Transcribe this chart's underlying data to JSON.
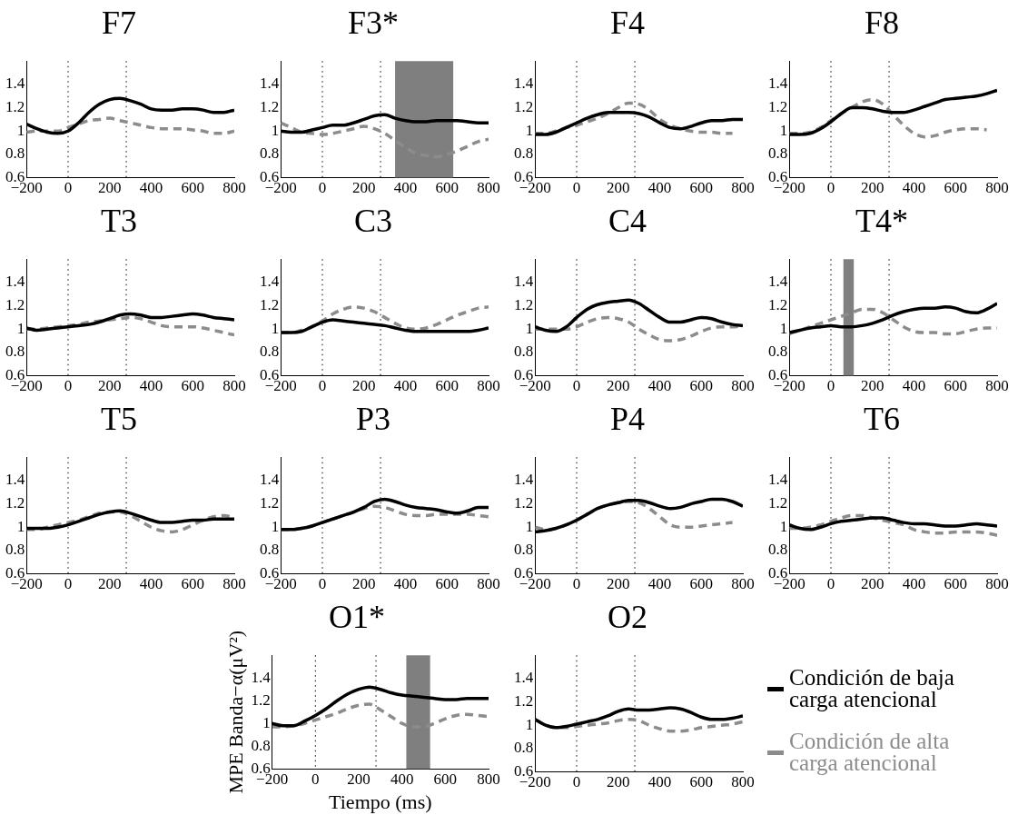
{
  "chart_data": [
    {
      "type": "line",
      "title": "F7",
      "x": [
        -200,
        -150,
        -100,
        -50,
        0,
        50,
        100,
        150,
        200,
        250,
        300,
        350,
        400,
        450,
        500,
        550,
        600,
        650,
        700,
        750,
        800
      ],
      "xlim": [
        -200,
        800
      ],
      "ylim": [
        0.6,
        1.6
      ],
      "xticks": [
        -200,
        0,
        200,
        400,
        600,
        800
      ],
      "yticks": [
        0.6,
        0.8,
        1,
        1.2,
        1.4
      ],
      "marker": "none",
      "series": [
        {
          "color": "#000000",
          "line_style": "solid",
          "values": [
            1.06,
            1.02,
            0.99,
            0.98,
            1.0,
            1.07,
            1.16,
            1.23,
            1.27,
            1.28,
            1.26,
            1.23,
            1.19,
            1.18,
            1.18,
            1.19,
            1.19,
            1.18,
            1.16,
            1.16,
            1.18
          ]
        },
        {
          "color": "#8c8c8c",
          "line_style": "dashed",
          "values": [
            0.99,
            1.0,
            1.0,
            1.0,
            1.03,
            1.06,
            1.09,
            1.1,
            1.11,
            1.09,
            1.07,
            1.05,
            1.03,
            1.02,
            1.02,
            1.02,
            1.01,
            1.0,
            0.98,
            0.98,
            1.0
          ]
        }
      ],
      "ref_lines": [
        {
          "axis": "x",
          "value": 0,
          "line_style": "dotted"
        },
        {
          "axis": "x",
          "value": 280,
          "line_style": "dotted"
        }
      ]
    },
    {
      "type": "line",
      "title": "F3*",
      "x": [
        -200,
        -150,
        -100,
        -50,
        0,
        50,
        100,
        150,
        200,
        250,
        300,
        350,
        400,
        450,
        500,
        550,
        600,
        650,
        700,
        750,
        800
      ],
      "xlim": [
        -200,
        800
      ],
      "ylim": [
        0.6,
        1.6
      ],
      "xticks": [
        -200,
        0,
        200,
        400,
        600,
        800
      ],
      "yticks": [
        0.6,
        0.8,
        1,
        1.2,
        1.4
      ],
      "marker": "none",
      "series": [
        {
          "color": "#000000",
          "line_style": "solid",
          "values": [
            1.0,
            0.99,
            0.99,
            1.01,
            1.03,
            1.05,
            1.05,
            1.07,
            1.1,
            1.13,
            1.14,
            1.11,
            1.09,
            1.08,
            1.08,
            1.09,
            1.09,
            1.09,
            1.08,
            1.07,
            1.07
          ]
        },
        {
          "color": "#8c8c8c",
          "line_style": "dashed",
          "values": [
            1.07,
            1.03,
            0.99,
            0.98,
            0.97,
            0.98,
            1.0,
            1.02,
            1.04,
            1.02,
            0.98,
            0.92,
            0.86,
            0.81,
            0.79,
            0.78,
            0.8,
            0.83,
            0.87,
            0.91,
            0.93
          ]
        }
      ],
      "ref_lines": [
        {
          "axis": "x",
          "value": 0,
          "line_style": "dotted"
        },
        {
          "axis": "x",
          "value": 280,
          "line_style": "dotted"
        }
      ],
      "bands": [
        {
          "axis": "x",
          "from": 350,
          "to": 630,
          "color": "#7f7f7f"
        }
      ]
    },
    {
      "type": "line",
      "title": "F4",
      "x": [
        -200,
        -150,
        -100,
        -50,
        0,
        50,
        100,
        150,
        200,
        250,
        300,
        350,
        400,
        450,
        500,
        550,
        600,
        650,
        700,
        750,
        800
      ],
      "xlim": [
        -200,
        800
      ],
      "ylim": [
        0.6,
        1.6
      ],
      "xticks": [
        -200,
        0,
        200,
        400,
        600,
        800
      ],
      "yticks": [
        0.6,
        0.8,
        1,
        1.2,
        1.4
      ],
      "marker": "none",
      "series": [
        {
          "color": "#000000",
          "line_style": "solid",
          "values": [
            0.97,
            0.97,
            0.99,
            1.03,
            1.07,
            1.11,
            1.14,
            1.16,
            1.16,
            1.16,
            1.15,
            1.12,
            1.07,
            1.03,
            1.02,
            1.04,
            1.07,
            1.09,
            1.09,
            1.1,
            1.1
          ]
        },
        {
          "color": "#8c8c8c",
          "line_style": "dashed",
          "values": [
            0.98,
            0.98,
            1.0,
            1.03,
            1.05,
            1.08,
            1.11,
            1.15,
            1.2,
            1.24,
            1.23,
            1.18,
            1.1,
            1.05,
            1.02,
            1.0,
            0.99,
            0.99,
            0.98,
            0.98,
            null
          ]
        }
      ],
      "ref_lines": [
        {
          "axis": "x",
          "value": 0,
          "line_style": "dotted"
        },
        {
          "axis": "x",
          "value": 280,
          "line_style": "dotted"
        }
      ]
    },
    {
      "type": "line",
      "title": "F8",
      "x": [
        -200,
        -150,
        -100,
        -50,
        0,
        50,
        100,
        150,
        200,
        250,
        300,
        350,
        400,
        450,
        500,
        550,
        600,
        650,
        700,
        750,
        800
      ],
      "xlim": [
        -200,
        800
      ],
      "ylim": [
        0.6,
        1.6
      ],
      "xticks": [
        -200,
        0,
        200,
        400,
        600,
        800
      ],
      "yticks": [
        0.6,
        0.8,
        1,
        1.2,
        1.4
      ],
      "marker": "none",
      "series": [
        {
          "color": "#000000",
          "line_style": "solid",
          "values": [
            0.97,
            0.97,
            0.98,
            1.02,
            1.08,
            1.15,
            1.2,
            1.2,
            1.19,
            1.17,
            1.16,
            1.16,
            1.18,
            1.21,
            1.24,
            1.27,
            1.28,
            1.29,
            1.3,
            1.32,
            1.35
          ]
        },
        {
          "color": "#8c8c8c",
          "line_style": "dashed",
          "values": [
            0.98,
            0.98,
            0.99,
            1.03,
            1.09,
            1.15,
            1.2,
            1.25,
            1.27,
            1.23,
            1.14,
            1.05,
            0.98,
            0.95,
            0.96,
            0.99,
            1.01,
            1.02,
            1.02,
            1.01,
            null
          ]
        }
      ],
      "ref_lines": [
        {
          "axis": "x",
          "value": 0,
          "line_style": "dotted"
        },
        {
          "axis": "x",
          "value": 280,
          "line_style": "dotted"
        }
      ]
    },
    {
      "type": "line",
      "title": "T3",
      "x": [
        -200,
        -150,
        -100,
        -50,
        0,
        50,
        100,
        150,
        200,
        250,
        300,
        350,
        400,
        450,
        500,
        550,
        600,
        650,
        700,
        750,
        800
      ],
      "xlim": [
        -200,
        800
      ],
      "ylim": [
        0.6,
        1.6
      ],
      "xticks": [
        -200,
        0,
        200,
        400,
        600,
        800
      ],
      "yticks": [
        0.6,
        0.8,
        1,
        1.2,
        1.4
      ],
      "marker": "none",
      "series": [
        {
          "color": "#000000",
          "line_style": "solid",
          "values": [
            1.01,
            0.99,
            1.0,
            1.01,
            1.02,
            1.03,
            1.04,
            1.06,
            1.09,
            1.12,
            1.13,
            1.12,
            1.1,
            1.1,
            1.11,
            1.12,
            1.13,
            1.12,
            1.1,
            1.09,
            1.08
          ]
        },
        {
          "color": "#8c8c8c",
          "line_style": "dashed",
          "values": [
            1.0,
            1.0,
            1.01,
            1.02,
            1.03,
            1.04,
            1.06,
            1.07,
            1.08,
            1.09,
            1.1,
            1.09,
            1.06,
            1.03,
            1.02,
            1.02,
            1.02,
            1.01,
            0.99,
            0.97,
            0.95
          ]
        }
      ],
      "ref_lines": [
        {
          "axis": "x",
          "value": 0,
          "line_style": "dotted"
        },
        {
          "axis": "x",
          "value": 280,
          "line_style": "dotted"
        }
      ]
    },
    {
      "type": "line",
      "title": "C3",
      "x": [
        -200,
        -150,
        -100,
        -50,
        0,
        50,
        100,
        150,
        200,
        250,
        300,
        350,
        400,
        450,
        500,
        550,
        600,
        650,
        700,
        750,
        800
      ],
      "xlim": [
        -200,
        800
      ],
      "ylim": [
        0.6,
        1.6
      ],
      "xticks": [
        -200,
        0,
        200,
        400,
        600,
        800
      ],
      "yticks": [
        0.6,
        0.8,
        1,
        1.2,
        1.4
      ],
      "marker": "none",
      "series": [
        {
          "color": "#000000",
          "line_style": "solid",
          "values": [
            0.97,
            0.97,
            0.98,
            1.02,
            1.06,
            1.08,
            1.07,
            1.06,
            1.05,
            1.04,
            1.03,
            1.01,
            0.99,
            0.98,
            0.98,
            0.98,
            0.98,
            0.98,
            0.98,
            0.99,
            1.01
          ]
        },
        {
          "color": "#8c8c8c",
          "line_style": "dashed",
          "values": [
            0.97,
            0.97,
            0.99,
            1.02,
            1.07,
            1.13,
            1.17,
            1.19,
            1.18,
            1.15,
            1.1,
            1.05,
            1.01,
            1.0,
            1.01,
            1.04,
            1.08,
            1.12,
            1.15,
            1.18,
            1.19
          ]
        }
      ],
      "ref_lines": [
        {
          "axis": "x",
          "value": 0,
          "line_style": "dotted"
        },
        {
          "axis": "x",
          "value": 280,
          "line_style": "dotted"
        }
      ]
    },
    {
      "type": "line",
      "title": "C4",
      "x": [
        -200,
        -150,
        -100,
        -50,
        0,
        50,
        100,
        150,
        200,
        250,
        300,
        350,
        400,
        450,
        500,
        550,
        600,
        650,
        700,
        750,
        800
      ],
      "xlim": [
        -200,
        800
      ],
      "ylim": [
        0.6,
        1.6
      ],
      "xticks": [
        -200,
        0,
        200,
        400,
        600,
        800
      ],
      "yticks": [
        0.6,
        0.8,
        1,
        1.2,
        1.4
      ],
      "marker": "none",
      "series": [
        {
          "color": "#000000",
          "line_style": "solid",
          "values": [
            1.02,
            0.99,
            0.98,
            1.02,
            1.1,
            1.17,
            1.21,
            1.23,
            1.24,
            1.25,
            1.22,
            1.16,
            1.1,
            1.06,
            1.06,
            1.08,
            1.1,
            1.09,
            1.06,
            1.04,
            1.03
          ]
        },
        {
          "color": "#8c8c8c",
          "line_style": "dashed",
          "values": [
            1.0,
            1.0,
            1.0,
            1.0,
            1.02,
            1.06,
            1.09,
            1.1,
            1.09,
            1.06,
            1.0,
            0.95,
            0.91,
            0.9,
            0.91,
            0.94,
            0.98,
            1.01,
            1.02,
            1.02,
            1.03
          ]
        }
      ],
      "ref_lines": [
        {
          "axis": "x",
          "value": 0,
          "line_style": "dotted"
        },
        {
          "axis": "x",
          "value": 280,
          "line_style": "dotted"
        }
      ]
    },
    {
      "type": "line",
      "title": "T4*",
      "x": [
        -200,
        -150,
        -100,
        -50,
        0,
        50,
        100,
        150,
        200,
        250,
        300,
        350,
        400,
        450,
        500,
        550,
        600,
        650,
        700,
        750,
        800
      ],
      "xlim": [
        -200,
        800
      ],
      "ylim": [
        0.6,
        1.6
      ],
      "xticks": [
        -200,
        0,
        200,
        400,
        600,
        800
      ],
      "yticks": [
        0.6,
        0.8,
        1,
        1.2,
        1.4
      ],
      "marker": "none",
      "series": [
        {
          "color": "#000000",
          "line_style": "solid",
          "values": [
            0.97,
            0.99,
            1.01,
            1.02,
            1.03,
            1.02,
            1.02,
            1.03,
            1.05,
            1.08,
            1.12,
            1.15,
            1.17,
            1.18,
            1.18,
            1.19,
            1.18,
            1.15,
            1.14,
            1.17,
            1.22
          ]
        },
        {
          "color": "#8c8c8c",
          "line_style": "dashed",
          "values": [
            0.96,
            0.99,
            1.02,
            1.05,
            1.08,
            1.11,
            1.14,
            1.17,
            1.17,
            1.14,
            1.08,
            1.02,
            0.98,
            0.97,
            0.97,
            0.96,
            0.96,
            0.98,
            1.0,
            1.01,
            1.01
          ]
        }
      ],
      "ref_lines": [
        {
          "axis": "x",
          "value": 0,
          "line_style": "dotted"
        },
        {
          "axis": "x",
          "value": 280,
          "line_style": "dotted"
        }
      ],
      "bands": [
        {
          "axis": "x",
          "from": 60,
          "to": 110,
          "color": "#7f7f7f"
        }
      ]
    },
    {
      "type": "line",
      "title": "T5",
      "x": [
        -200,
        -150,
        -100,
        -50,
        0,
        50,
        100,
        150,
        200,
        250,
        300,
        350,
        400,
        450,
        500,
        550,
        600,
        650,
        700,
        750,
        800
      ],
      "xlim": [
        -200,
        800
      ],
      "ylim": [
        0.6,
        1.6
      ],
      "xticks": [
        -200,
        0,
        200,
        400,
        600,
        800
      ],
      "yticks": [
        0.6,
        0.8,
        1,
        1.2,
        1.4
      ],
      "marker": "none",
      "series": [
        {
          "color": "#000000",
          "line_style": "solid",
          "values": [
            0.99,
            0.99,
            0.99,
            1.0,
            1.02,
            1.05,
            1.08,
            1.11,
            1.13,
            1.14,
            1.12,
            1.09,
            1.06,
            1.04,
            1.04,
            1.05,
            1.06,
            1.06,
            1.07,
            1.07,
            1.07
          ]
        },
        {
          "color": "#8c8c8c",
          "line_style": "dashed",
          "values": [
            0.98,
            0.98,
            1.0,
            1.02,
            1.04,
            1.06,
            1.09,
            1.12,
            1.13,
            1.13,
            1.1,
            1.05,
            1.0,
            0.97,
            0.96,
            0.98,
            1.02,
            1.06,
            1.09,
            1.1,
            1.08
          ]
        }
      ],
      "ref_lines": [
        {
          "axis": "x",
          "value": 0,
          "line_style": "dotted"
        },
        {
          "axis": "x",
          "value": 280,
          "line_style": "dotted"
        }
      ]
    },
    {
      "type": "line",
      "title": "P3",
      "x": [
        -200,
        -150,
        -100,
        -50,
        0,
        50,
        100,
        150,
        200,
        250,
        300,
        350,
        400,
        450,
        500,
        550,
        600,
        650,
        700,
        750,
        800
      ],
      "xlim": [
        -200,
        800
      ],
      "ylim": [
        0.6,
        1.6
      ],
      "xticks": [
        -200,
        0,
        200,
        400,
        600,
        800
      ],
      "yticks": [
        0.6,
        0.8,
        1,
        1.2,
        1.4
      ],
      "marker": "none",
      "series": [
        {
          "color": "#000000",
          "line_style": "solid",
          "values": [
            0.98,
            0.98,
            0.99,
            1.01,
            1.04,
            1.07,
            1.1,
            1.13,
            1.17,
            1.22,
            1.24,
            1.22,
            1.19,
            1.17,
            1.16,
            1.15,
            1.13,
            1.12,
            1.14,
            1.17,
            1.17
          ]
        },
        {
          "color": "#8c8c8c",
          "line_style": "dashed",
          "values": [
            0.98,
            0.98,
            0.99,
            1.01,
            1.04,
            1.07,
            1.1,
            1.13,
            1.16,
            1.18,
            1.17,
            1.14,
            1.11,
            1.1,
            1.1,
            1.11,
            1.11,
            1.11,
            1.11,
            1.1,
            1.09
          ]
        }
      ],
      "ref_lines": [
        {
          "axis": "x",
          "value": 0,
          "line_style": "dotted"
        },
        {
          "axis": "x",
          "value": 280,
          "line_style": "dotted"
        }
      ]
    },
    {
      "type": "line",
      "title": "P4",
      "x": [
        -200,
        -150,
        -100,
        -50,
        0,
        50,
        100,
        150,
        200,
        250,
        300,
        350,
        400,
        450,
        500,
        550,
        600,
        650,
        700,
        750,
        800
      ],
      "xlim": [
        -200,
        800
      ],
      "ylim": [
        0.6,
        1.6
      ],
      "xticks": [
        -200,
        0,
        200,
        400,
        600,
        800
      ],
      "yticks": [
        0.6,
        0.8,
        1,
        1.2,
        1.4
      ],
      "marker": "none",
      "series": [
        {
          "color": "#000000",
          "line_style": "solid",
          "values": [
            0.96,
            0.97,
            0.99,
            1.02,
            1.06,
            1.11,
            1.16,
            1.19,
            1.21,
            1.23,
            1.23,
            1.21,
            1.18,
            1.16,
            1.17,
            1.2,
            1.22,
            1.24,
            1.24,
            1.22,
            1.18
          ]
        },
        {
          "color": "#8c8c8c",
          "line_style": "dashed",
          "values": [
            1.0,
            0.98,
            0.99,
            1.02,
            1.06,
            1.11,
            1.16,
            1.19,
            1.21,
            1.22,
            1.21,
            1.16,
            1.09,
            1.02,
            1.0,
            1.0,
            1.01,
            1.02,
            1.03,
            1.04,
            null
          ]
        }
      ],
      "ref_lines": [
        {
          "axis": "x",
          "value": 0,
          "line_style": "dotted"
        },
        {
          "axis": "x",
          "value": 280,
          "line_style": "dotted"
        }
      ]
    },
    {
      "type": "line",
      "title": "T6",
      "x": [
        -200,
        -150,
        -100,
        -50,
        0,
        50,
        100,
        150,
        200,
        250,
        300,
        350,
        400,
        450,
        500,
        550,
        600,
        650,
        700,
        750,
        800
      ],
      "xlim": [
        -200,
        800
      ],
      "ylim": [
        0.6,
        1.6
      ],
      "xticks": [
        -200,
        0,
        200,
        400,
        600,
        800
      ],
      "yticks": [
        0.6,
        0.8,
        1,
        1.2,
        1.4
      ],
      "marker": "none",
      "series": [
        {
          "color": "#000000",
          "line_style": "solid",
          "values": [
            1.02,
            0.99,
            0.98,
            1.0,
            1.03,
            1.05,
            1.06,
            1.07,
            1.08,
            1.08,
            1.06,
            1.04,
            1.03,
            1.03,
            1.02,
            1.01,
            1.01,
            1.02,
            1.03,
            1.02,
            1.01
          ]
        },
        {
          "color": "#8c8c8c",
          "line_style": "dashed",
          "values": [
            0.99,
            0.99,
            1.0,
            1.02,
            1.05,
            1.08,
            1.1,
            1.1,
            1.08,
            1.06,
            1.04,
            1.02,
            0.98,
            0.96,
            0.95,
            0.95,
            0.96,
            0.96,
            0.96,
            0.95,
            0.93
          ]
        }
      ],
      "ref_lines": [
        {
          "axis": "x",
          "value": 0,
          "line_style": "dotted"
        },
        {
          "axis": "x",
          "value": 280,
          "line_style": "dotted"
        }
      ]
    },
    {
      "type": "line",
      "title": "O1*",
      "xlabel": "Tiempo (ms)",
      "ylabel": "MPE Banda−α(μV²)",
      "x": [
        -200,
        -150,
        -100,
        -50,
        0,
        50,
        100,
        150,
        200,
        250,
        300,
        350,
        400,
        450,
        500,
        550,
        600,
        650,
        700,
        750,
        800
      ],
      "xlim": [
        -200,
        800
      ],
      "ylim": [
        0.6,
        1.6
      ],
      "xticks": [
        -200,
        0,
        200,
        400,
        600,
        800
      ],
      "yticks": [
        0.6,
        0.8,
        1,
        1.2,
        1.4
      ],
      "marker": "none",
      "series": [
        {
          "color": "#000000",
          "line_style": "solid",
          "values": [
            1.0,
            0.98,
            0.98,
            1.02,
            1.07,
            1.13,
            1.2,
            1.26,
            1.3,
            1.32,
            1.3,
            1.27,
            1.25,
            1.24,
            1.23,
            1.22,
            1.21,
            1.21,
            1.22,
            1.22,
            1.22
          ]
        },
        {
          "color": "#8c8c8c",
          "line_style": "dashed",
          "values": [
            0.97,
            0.97,
            0.98,
            1.0,
            1.03,
            1.06,
            1.09,
            1.13,
            1.16,
            1.17,
            1.12,
            1.06,
            1.0,
            0.97,
            0.97,
            1.0,
            1.04,
            1.07,
            1.08,
            1.07,
            1.06
          ]
        }
      ],
      "ref_lines": [
        {
          "axis": "x",
          "value": 0,
          "line_style": "dotted"
        },
        {
          "axis": "x",
          "value": 280,
          "line_style": "dotted"
        }
      ],
      "bands": [
        {
          "axis": "x",
          "from": 420,
          "to": 530,
          "color": "#7f7f7f"
        }
      ]
    },
    {
      "type": "line",
      "title": "O2",
      "legend": "right",
      "x": [
        -200,
        -150,
        -100,
        -50,
        0,
        50,
        100,
        150,
        200,
        250,
        300,
        350,
        400,
        450,
        500,
        550,
        600,
        650,
        700,
        750,
        800
      ],
      "xlim": [
        -200,
        800
      ],
      "ylim": [
        0.6,
        1.6
      ],
      "xticks": [
        -200,
        0,
        200,
        400,
        600,
        800
      ],
      "yticks": [
        0.6,
        0.8,
        1,
        1.2,
        1.4
      ],
      "marker": "none",
      "series": [
        {
          "name": "Condición de baja carga atencional",
          "color": "#000000",
          "line_style": "solid",
          "values": [
            1.05,
            1.0,
            0.98,
            0.99,
            1.01,
            1.03,
            1.05,
            1.08,
            1.12,
            1.14,
            1.13,
            1.13,
            1.14,
            1.15,
            1.14,
            1.11,
            1.07,
            1.05,
            1.05,
            1.06,
            1.08
          ]
        },
        {
          "name": "Condición de alta carga atencional",
          "color": "#8c8c8c",
          "line_style": "dashed",
          "values": [
            1.05,
            1.0,
            0.98,
            0.98,
            0.99,
            1.0,
            1.01,
            1.02,
            1.04,
            1.05,
            1.04,
            1.0,
            0.97,
            0.95,
            0.95,
            0.96,
            0.98,
            0.99,
            1.0,
            1.01,
            1.03
          ]
        }
      ],
      "ref_lines": [
        {
          "axis": "x",
          "value": 0,
          "line_style": "dotted"
        },
        {
          "axis": "x",
          "value": 280,
          "line_style": "dotted"
        }
      ]
    }
  ]
}
